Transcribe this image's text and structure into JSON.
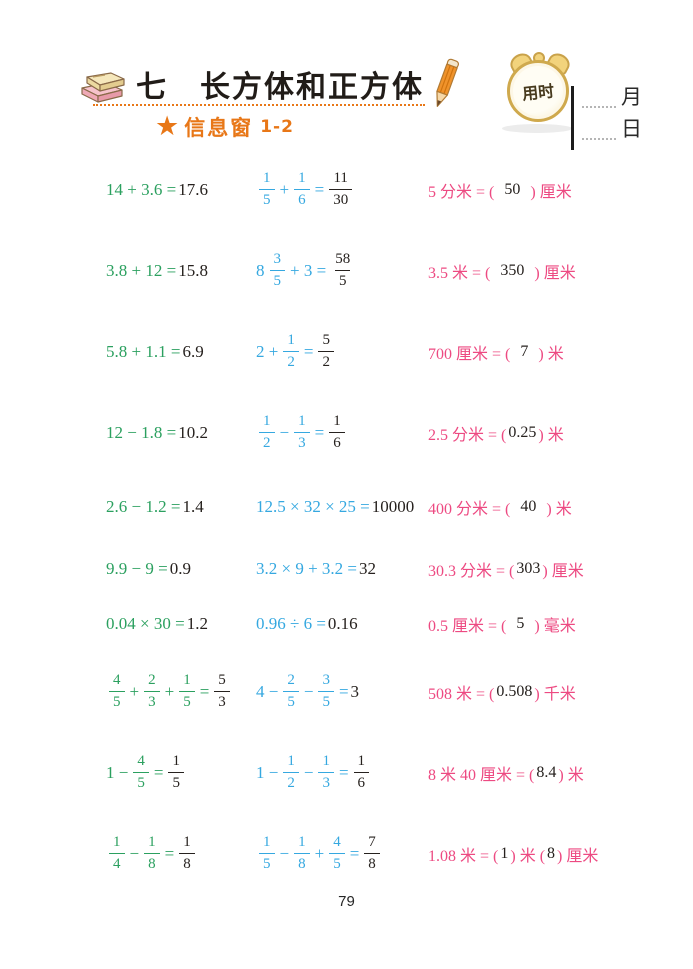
{
  "header": {
    "unit_title": "七　长方体和正方体",
    "section_label": "信息窗",
    "section_number": "1-2",
    "timer_label": "用时",
    "month_label": "月",
    "day_label": "日"
  },
  "footer": {
    "page_number": "79"
  },
  "colors": {
    "green": "#2ba05f",
    "blue": "#35a8e0",
    "pink": "#ed4a82",
    "orange": "#e87717",
    "ink": "#26211e"
  },
  "problems": {
    "columns": [
      "decimal-arithmetic",
      "fraction-arithmetic",
      "unit-conversion"
    ],
    "rows": [
      {
        "size": "tall",
        "cells": [
          [
            {
              "t": "x",
              "c": "g",
              "s": "14 + 3.6 ="
            },
            {
              "t": "x",
              "c": "k",
              "s": "17.6"
            }
          ],
          [
            {
              "t": "f",
              "c": "b",
              "n": "1",
              "d": "5"
            },
            {
              "t": "x",
              "c": "b",
              "s": "+"
            },
            {
              "t": "f",
              "c": "b",
              "n": "1",
              "d": "6"
            },
            {
              "t": "x",
              "c": "b",
              "s": "="
            },
            {
              "t": "f",
              "c": "k",
              "n": "11",
              "d": "30"
            }
          ],
          [
            {
              "t": "x",
              "c": "p",
              "s": "5 分米 = ("
            },
            {
              "t": "x",
              "c": "k",
              "s": " 50 "
            },
            {
              "t": "x",
              "c": "p",
              "s": ") 厘米"
            }
          ]
        ]
      },
      {
        "size": "tall",
        "cells": [
          [
            {
              "t": "x",
              "c": "g",
              "s": "3.8 + 12 ="
            },
            {
              "t": "x",
              "c": "k",
              "s": "15.8"
            }
          ],
          [
            {
              "t": "x",
              "c": "b",
              "s": "8"
            },
            {
              "t": "f",
              "c": "b",
              "n": "3",
              "d": "5"
            },
            {
              "t": "x",
              "c": "b",
              "s": "+ 3 ="
            },
            {
              "t": "f",
              "c": "k",
              "n": "58",
              "d": "5"
            }
          ],
          [
            {
              "t": "x",
              "c": "p",
              "s": "3.5 米 = ("
            },
            {
              "t": "x",
              "c": "k",
              "s": " 350 "
            },
            {
              "t": "x",
              "c": "p",
              "s": ") 厘米"
            }
          ]
        ]
      },
      {
        "size": "tall",
        "cells": [
          [
            {
              "t": "x",
              "c": "g",
              "s": "5.8 + 1.1 ="
            },
            {
              "t": "x",
              "c": "k",
              "s": "6.9"
            }
          ],
          [
            {
              "t": "x",
              "c": "b",
              "s": "2 +"
            },
            {
              "t": "f",
              "c": "b",
              "n": "1",
              "d": "2"
            },
            {
              "t": "x",
              "c": "b",
              "s": "="
            },
            {
              "t": "f",
              "c": "k",
              "n": "5",
              "d": "2"
            }
          ],
          [
            {
              "t": "x",
              "c": "p",
              "s": "700 厘米 = ("
            },
            {
              "t": "x",
              "c": "k",
              "s": " 7 "
            },
            {
              "t": "x",
              "c": "p",
              "s": ") 米"
            }
          ]
        ]
      },
      {
        "size": "tall",
        "cells": [
          [
            {
              "t": "x",
              "c": "g",
              "s": "12 − 1.8 ="
            },
            {
              "t": "x",
              "c": "k",
              "s": "10.2"
            }
          ],
          [
            {
              "t": "f",
              "c": "b",
              "n": "1",
              "d": "2"
            },
            {
              "t": "x",
              "c": "b",
              "s": "−"
            },
            {
              "t": "f",
              "c": "b",
              "n": "1",
              "d": "3"
            },
            {
              "t": "x",
              "c": "b",
              "s": "="
            },
            {
              "t": "f",
              "c": "k",
              "n": "1",
              "d": "6"
            }
          ],
          [
            {
              "t": "x",
              "c": "p",
              "s": "2.5 分米 = ("
            },
            {
              "t": "x",
              "c": "k",
              "s": "0.25"
            },
            {
              "t": "x",
              "c": "p",
              "s": ") 米"
            }
          ]
        ]
      },
      {
        "size": "mid",
        "cells": [
          [
            {
              "t": "x",
              "c": "g",
              "s": "2.6 − 1.2 ="
            },
            {
              "t": "x",
              "c": "k",
              "s": "1.4"
            }
          ],
          [
            {
              "t": "x",
              "c": "b",
              "s": "12.5 × 32 × 25 ="
            },
            {
              "t": "x",
              "c": "k",
              "s": "10000"
            }
          ],
          [
            {
              "t": "x",
              "c": "p",
              "s": "400 分米 = ("
            },
            {
              "t": "x",
              "c": "k",
              "s": " 40 "
            },
            {
              "t": "x",
              "c": "p",
              "s": ") 米"
            }
          ]
        ]
      },
      {
        "size": "short",
        "cells": [
          [
            {
              "t": "x",
              "c": "g",
              "s": "9.9 − 9 ="
            },
            {
              "t": "x",
              "c": "k",
              "s": "0.9"
            }
          ],
          [
            {
              "t": "x",
              "c": "b",
              "s": "3.2 × 9 + 3.2 ="
            },
            {
              "t": "x",
              "c": "k",
              "s": "32"
            }
          ],
          [
            {
              "t": "x",
              "c": "p",
              "s": "30.3 分米 = ("
            },
            {
              "t": "x",
              "c": "k",
              "s": "303"
            },
            {
              "t": "x",
              "c": "p",
              "s": ") 厘米"
            }
          ]
        ]
      },
      {
        "size": "short",
        "cells": [
          [
            {
              "t": "x",
              "c": "g",
              "s": "0.04 × 30 ="
            },
            {
              "t": "x",
              "c": "k",
              "s": "1.2"
            }
          ],
          [
            {
              "t": "x",
              "c": "b",
              "s": "0.96 ÷ 6 ="
            },
            {
              "t": "x",
              "c": "k",
              "s": "0.16"
            }
          ],
          [
            {
              "t": "x",
              "c": "p",
              "s": "0.5 厘米 = ("
            },
            {
              "t": "x",
              "c": "k",
              "s": " 5 "
            },
            {
              "t": "x",
              "c": "p",
              "s": ") 毫米"
            }
          ]
        ]
      },
      {
        "size": "tall",
        "cells": [
          [
            {
              "t": "f",
              "c": "g",
              "n": "4",
              "d": "5"
            },
            {
              "t": "x",
              "c": "g",
              "s": "+"
            },
            {
              "t": "f",
              "c": "g",
              "n": "2",
              "d": "3"
            },
            {
              "t": "x",
              "c": "g",
              "s": "+"
            },
            {
              "t": "f",
              "c": "g",
              "n": "1",
              "d": "5"
            },
            {
              "t": "x",
              "c": "g",
              "s": "="
            },
            {
              "t": "f",
              "c": "k",
              "n": "5",
              "d": "3"
            }
          ],
          [
            {
              "t": "x",
              "c": "b",
              "s": "4 −"
            },
            {
              "t": "f",
              "c": "b",
              "n": "2",
              "d": "5"
            },
            {
              "t": "x",
              "c": "b",
              "s": "−"
            },
            {
              "t": "f",
              "c": "b",
              "n": "3",
              "d": "5"
            },
            {
              "t": "x",
              "c": "b",
              "s": "="
            },
            {
              "t": "x",
              "c": "k",
              "s": "3"
            }
          ],
          [
            {
              "t": "x",
              "c": "p",
              "s": "508 米 = ("
            },
            {
              "t": "x",
              "c": "k",
              "s": "0.508"
            },
            {
              "t": "x",
              "c": "p",
              "s": ") 千米"
            }
          ]
        ]
      },
      {
        "size": "tall",
        "cells": [
          [
            {
              "t": "x",
              "c": "g",
              "s": "1 −"
            },
            {
              "t": "f",
              "c": "g",
              "n": "4",
              "d": "5"
            },
            {
              "t": "x",
              "c": "g",
              "s": "="
            },
            {
              "t": "f",
              "c": "k",
              "n": "1",
              "d": "5"
            }
          ],
          [
            {
              "t": "x",
              "c": "b",
              "s": "1 −"
            },
            {
              "t": "f",
              "c": "b",
              "n": "1",
              "d": "2"
            },
            {
              "t": "x",
              "c": "b",
              "s": "−"
            },
            {
              "t": "f",
              "c": "b",
              "n": "1",
              "d": "3"
            },
            {
              "t": "x",
              "c": "b",
              "s": "="
            },
            {
              "t": "f",
              "c": "k",
              "n": "1",
              "d": "6"
            }
          ],
          [
            {
              "t": "x",
              "c": "p",
              "s": "8 米 40 厘米 = ("
            },
            {
              "t": "x",
              "c": "k",
              "s": "8.4"
            },
            {
              "t": "x",
              "c": "p",
              "s": ") 米"
            }
          ]
        ]
      },
      {
        "size": "tall",
        "cells": [
          [
            {
              "t": "f",
              "c": "g",
              "n": "1",
              "d": "4"
            },
            {
              "t": "x",
              "c": "g",
              "s": "−"
            },
            {
              "t": "f",
              "c": "g",
              "n": "1",
              "d": "8"
            },
            {
              "t": "x",
              "c": "g",
              "s": "="
            },
            {
              "t": "f",
              "c": "k",
              "n": "1",
              "d": "8"
            }
          ],
          [
            {
              "t": "f",
              "c": "b",
              "n": "1",
              "d": "5"
            },
            {
              "t": "x",
              "c": "b",
              "s": "−"
            },
            {
              "t": "f",
              "c": "b",
              "n": "1",
              "d": "8"
            },
            {
              "t": "x",
              "c": "b",
              "s": "+"
            },
            {
              "t": "f",
              "c": "b",
              "n": "4",
              "d": "5"
            },
            {
              "t": "x",
              "c": "b",
              "s": "="
            },
            {
              "t": "f",
              "c": "k",
              "n": "7",
              "d": "8"
            }
          ],
          [
            {
              "t": "x",
              "c": "p",
              "s": "1.08 米 = ("
            },
            {
              "t": "x",
              "c": "k",
              "s": "1"
            },
            {
              "t": "x",
              "c": "p",
              "s": ") 米 ("
            },
            {
              "t": "x",
              "c": "k",
              "s": "8"
            },
            {
              "t": "x",
              "c": "p",
              "s": ") 厘米"
            }
          ]
        ]
      }
    ]
  }
}
